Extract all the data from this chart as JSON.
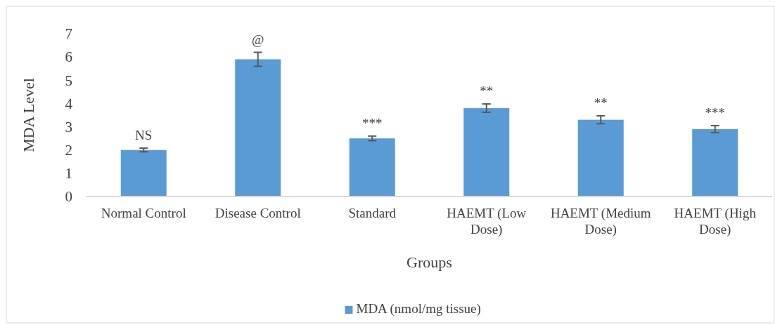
{
  "chart_data": {
    "type": "bar",
    "xlabel": "Groups",
    "ylabel": "MDA Level",
    "categories": [
      "Normal Control",
      "Disease Control",
      "Standard",
      "HAEMT (Low Dose)",
      "HAEMT (Medium Dose)",
      "HAEMT (High Dose)"
    ],
    "series": [
      {
        "name": "MDA (nmol/mg tissue)",
        "color": "#5b9bd5",
        "values": [
          2.0,
          5.9,
          2.5,
          3.8,
          3.3,
          2.9
        ],
        "errors": [
          0.08,
          0.3,
          0.1,
          0.18,
          0.17,
          0.15
        ]
      }
    ],
    "ylim": [
      0,
      7
    ],
    "yticks": [
      0,
      1,
      2,
      3,
      4,
      5,
      6,
      7
    ],
    "grid": false,
    "legend": "bottom",
    "annotations": [
      {
        "text": "NS",
        "x": "Normal Control",
        "y": 2.08
      },
      {
        "text": "@",
        "x": "Disease Control",
        "y": 6.2
      },
      {
        "text": "***",
        "x": "Standard",
        "y": 2.6
      },
      {
        "text": "**",
        "x": "HAEMT (Low Dose)",
        "y": 3.98
      },
      {
        "text": "**",
        "x": "HAEMT (Medium Dose)",
        "y": 3.47
      },
      {
        "text": "***",
        "x": "HAEMT (High Dose)",
        "y": 3.05
      }
    ]
  }
}
